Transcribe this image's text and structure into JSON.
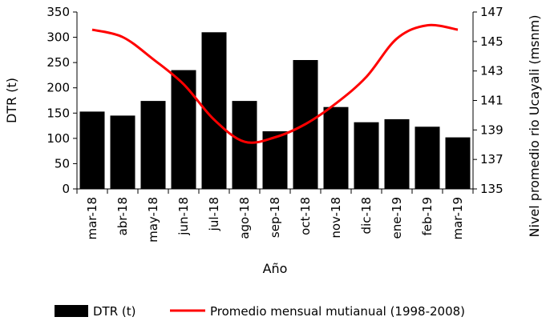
{
  "chart_data": {
    "type": "bar",
    "categories": [
      "mar-18",
      "abr-18",
      "may-18",
      "jun-18",
      "jul-18",
      "ago-18",
      "sep-18",
      "oct-18",
      "nov-18",
      "dic-18",
      "ene-19",
      "feb-19",
      "mar-19"
    ],
    "series": [
      {
        "name": "DTR (t)",
        "type": "bar",
        "axis": "left",
        "color": "#000000",
        "values": [
          153,
          145,
          174,
          235,
          310,
          174,
          114,
          255,
          162,
          132,
          138,
          123,
          102
        ]
      },
      {
        "name": "Promedio mensual mutianual (1998-2008)",
        "type": "line",
        "axis": "right",
        "color": "#ff0000",
        "values": [
          145.8,
          145.3,
          143.8,
          142.1,
          139.7,
          138.2,
          138.5,
          139.4,
          140.8,
          142.6,
          145.2,
          146.1,
          145.8
        ]
      }
    ],
    "xlabel": "Año",
    "ylabel": "DTR (t)",
    "ylabel_right": "Nivel promedio rio Ucayali (msnm)",
    "ylim": [
      0,
      350
    ],
    "y_ticks": [
      "0",
      "50",
      "100",
      "150",
      "200",
      "250",
      "300",
      "350"
    ],
    "ylim_right": [
      135,
      147
    ],
    "y2_ticks": [
      "135",
      "137",
      "139",
      "141",
      "143",
      "145",
      "147"
    ],
    "grid": false,
    "legend_position": "bottom"
  }
}
